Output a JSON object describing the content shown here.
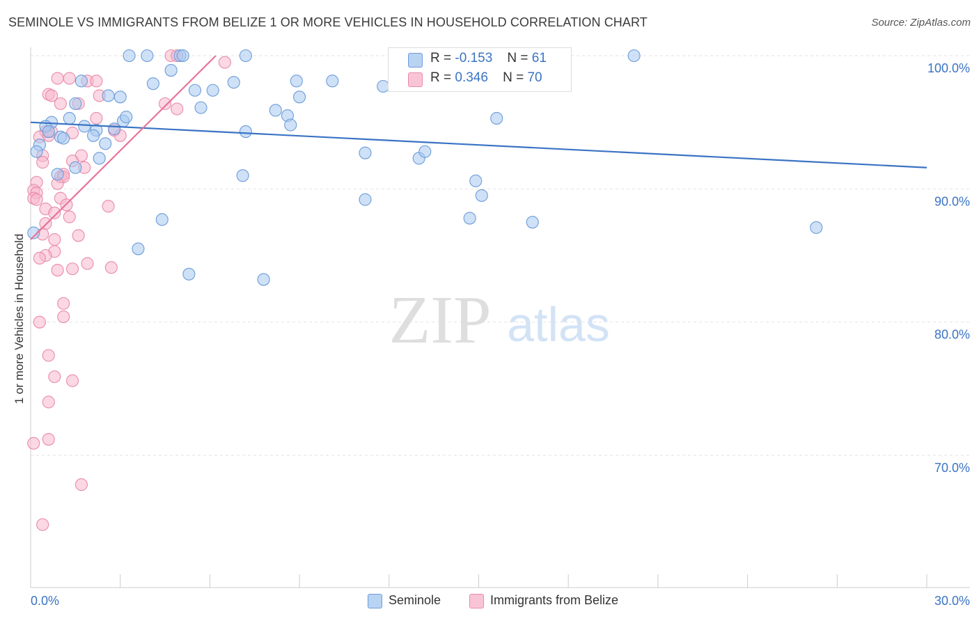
{
  "title": "SEMINOLE VS IMMIGRANTS FROM BELIZE 1 OR MORE VEHICLES IN HOUSEHOLD CORRELATION CHART",
  "source": "Source: ZipAtlas.com",
  "watermark": {
    "zip": "ZIP",
    "atlas": "atlas"
  },
  "legend_top": {
    "r_label": "R =",
    "n_label": "N =",
    "rows": [
      {
        "r": "-0.153",
        "n": "61"
      },
      {
        "r": "0.346",
        "n": "70"
      }
    ]
  },
  "colors": {
    "seminole_fill": "#a8c8f0",
    "seminole_stroke": "#6b9bd8",
    "seminole_line": "#3a73c4",
    "belize_fill": "#f7b8cc",
    "belize_stroke": "#e98aaa",
    "belize_line": "#e8739a",
    "axis_value": "#3a73c4"
  },
  "chart_data": {
    "type": "scatter",
    "title": "SEMINOLE VS IMMIGRANTS FROM BELIZE 1 OR MORE VEHICLES IN HOUSEHOLD CORRELATION CHART",
    "xlabel": "",
    "ylabel": "1 or more Vehicles in Household",
    "xlim": [
      0,
      30
    ],
    "ylim": [
      61,
      102.5
    ],
    "x_tick_labels": [
      "0.0%",
      "30.0%"
    ],
    "y_ticks": [
      {
        "value": 100,
        "label": "100.0%"
      },
      {
        "value": 90,
        "label": "90.0%"
      },
      {
        "value": 80,
        "label": "80.0%"
      },
      {
        "value": 70,
        "label": "70.0%"
      }
    ],
    "grid": "horizontal-dashed",
    "legend_position": "top-center",
    "series": [
      {
        "name": "Seminole",
        "r": -0.153,
        "n": 61,
        "trend": {
          "x": [
            0,
            30
          ],
          "y": [
            95.0,
            91.6
          ]
        },
        "points": [
          [
            3.3,
            100
          ],
          [
            3.9,
            100
          ],
          [
            5.0,
            100
          ],
          [
            5.1,
            100
          ],
          [
            7.2,
            100
          ],
          [
            20.2,
            100
          ],
          [
            4.7,
            98.9
          ],
          [
            1.7,
            98.1
          ],
          [
            4.1,
            97.9
          ],
          [
            6.8,
            98.0
          ],
          [
            8.9,
            98.1
          ],
          [
            10.1,
            98.1
          ],
          [
            11.8,
            97.7
          ],
          [
            2.6,
            97.0
          ],
          [
            3.0,
            96.9
          ],
          [
            5.5,
            97.4
          ],
          [
            6.1,
            97.4
          ],
          [
            1.5,
            96.4
          ],
          [
            5.7,
            96.1
          ],
          [
            8.2,
            95.9
          ],
          [
            9.0,
            96.9
          ],
          [
            0.7,
            95.0
          ],
          [
            1.3,
            95.3
          ],
          [
            3.1,
            95.1
          ],
          [
            3.2,
            95.4
          ],
          [
            8.6,
            95.5
          ],
          [
            15.6,
            95.3
          ],
          [
            0.5,
            94.7
          ],
          [
            0.6,
            94.3
          ],
          [
            1.8,
            94.7
          ],
          [
            2.2,
            94.4
          ],
          [
            2.8,
            94.5
          ],
          [
            7.2,
            94.3
          ],
          [
            8.7,
            94.8
          ],
          [
            1.0,
            93.9
          ],
          [
            1.1,
            93.8
          ],
          [
            2.1,
            94.0
          ],
          [
            2.5,
            93.4
          ],
          [
            0.3,
            93.3
          ],
          [
            0.2,
            92.8
          ],
          [
            2.3,
            92.3
          ],
          [
            11.2,
            92.7
          ],
          [
            13.0,
            92.3
          ],
          [
            13.2,
            92.8
          ],
          [
            0.9,
            91.1
          ],
          [
            1.5,
            91.6
          ],
          [
            7.1,
            91.0
          ],
          [
            14.9,
            90.6
          ],
          [
            15.1,
            89.5
          ],
          [
            11.2,
            89.2
          ],
          [
            4.4,
            87.7
          ],
          [
            14.7,
            87.8
          ],
          [
            16.8,
            87.5
          ],
          [
            26.3,
            87.1
          ],
          [
            3.6,
            85.5
          ],
          [
            5.3,
            83.6
          ],
          [
            7.8,
            83.2
          ],
          [
            0.1,
            86.7
          ]
        ]
      },
      {
        "name": "Immigrants from Belize",
        "r": 0.346,
        "n": 70,
        "trend": {
          "x": [
            0,
            6.2
          ],
          "y": [
            86.2,
            100.0
          ]
        },
        "points": [
          [
            4.7,
            100
          ],
          [
            4.9,
            100
          ],
          [
            6.5,
            99.5
          ],
          [
            0.9,
            98.3
          ],
          [
            1.3,
            98.3
          ],
          [
            1.9,
            98.1
          ],
          [
            2.2,
            98.1
          ],
          [
            0.6,
            97.1
          ],
          [
            0.7,
            97.0
          ],
          [
            2.3,
            97.0
          ],
          [
            4.5,
            96.4
          ],
          [
            4.9,
            96.0
          ],
          [
            1.0,
            96.4
          ],
          [
            1.6,
            96.4
          ],
          [
            2.2,
            95.3
          ],
          [
            0.5,
            94.3
          ],
          [
            0.7,
            94.3
          ],
          [
            1.4,
            94.2
          ],
          [
            2.8,
            94.4
          ],
          [
            3.0,
            94.0
          ],
          [
            0.3,
            93.9
          ],
          [
            0.6,
            94.0
          ],
          [
            1.7,
            92.5
          ],
          [
            0.4,
            92.5
          ],
          [
            0.4,
            92.0
          ],
          [
            1.4,
            92.1
          ],
          [
            1.1,
            91.1
          ],
          [
            1.0,
            90.9
          ],
          [
            1.1,
            90.9
          ],
          [
            1.8,
            91.6
          ],
          [
            0.2,
            90.5
          ],
          [
            0.9,
            90.4
          ],
          [
            0.1,
            89.9
          ],
          [
            0.2,
            89.7
          ],
          [
            0.1,
            89.3
          ],
          [
            0.2,
            89.2
          ],
          [
            1.0,
            89.3
          ],
          [
            1.2,
            88.8
          ],
          [
            0.5,
            88.5
          ],
          [
            2.6,
            88.7
          ],
          [
            0.8,
            88.2
          ],
          [
            1.3,
            87.9
          ],
          [
            0.5,
            87.4
          ],
          [
            0.4,
            86.6
          ],
          [
            1.6,
            86.5
          ],
          [
            0.8,
            86.2
          ],
          [
            0.8,
            85.3
          ],
          [
            0.5,
            85.0
          ],
          [
            0.3,
            84.8
          ],
          [
            1.9,
            84.4
          ],
          [
            0.9,
            83.9
          ],
          [
            1.4,
            84.0
          ],
          [
            2.7,
            84.1
          ],
          [
            1.1,
            81.4
          ],
          [
            1.1,
            80.4
          ],
          [
            0.3,
            80.0
          ],
          [
            0.6,
            77.5
          ],
          [
            0.8,
            75.9
          ],
          [
            1.4,
            75.6
          ],
          [
            0.6,
            74.0
          ],
          [
            0.6,
            71.2
          ],
          [
            0.1,
            70.9
          ],
          [
            1.7,
            67.8
          ],
          [
            0.4,
            64.8
          ]
        ]
      }
    ]
  }
}
